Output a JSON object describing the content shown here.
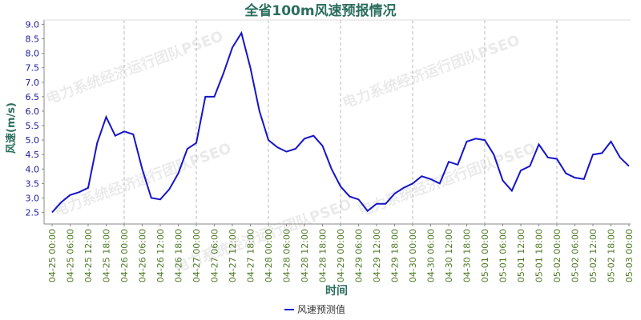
{
  "chart_data": {
    "type": "line",
    "title": "全省100m风速预报情况",
    "y_label": "风速(m/s)",
    "x_label": "时间",
    "watermark": "电力系统经济运行团队PSEO",
    "categories": [
      "04-25 00:00",
      null,
      "04-25 06:00",
      null,
      "04-25 12:00",
      null,
      "04-25 18:00",
      null,
      "04-26 00:00",
      null,
      "04-26 06:00",
      null,
      "04-26 12:00",
      null,
      "04-26 18:00",
      null,
      "04-27 00:00",
      null,
      "04-27 06:00",
      null,
      "04-27 12:00",
      null,
      "04-27 18:00",
      null,
      "04-28 00:00",
      null,
      "04-28 06:00",
      null,
      "04-28 12:00",
      null,
      "04-28 18:00",
      null,
      "04-29 00:00",
      null,
      "04-29 06:00",
      null,
      "04-29 12:00",
      null,
      "04-29 18:00",
      null,
      "04-30 00:00",
      null,
      "04-30 06:00",
      null,
      "04-30 12:00",
      null,
      "04-30 18:00",
      null,
      "05-01 00:00",
      null,
      "05-01 06:00",
      null,
      "05-01 12:00",
      null,
      "05-01 18:00",
      null,
      "05-02 00:00",
      null,
      "05-02 06:00",
      null,
      "05-02 12:00",
      null,
      "05-02 18:00",
      null,
      "05-03 00:00"
    ],
    "series": [
      {
        "name": "风速预测值",
        "color": "#1515c8",
        "values": [
          2.5,
          2.85,
          3.1,
          3.2,
          3.35,
          4.9,
          5.8,
          5.15,
          5.3,
          5.2,
          4.0,
          3.0,
          2.95,
          3.3,
          3.85,
          4.7,
          4.9,
          6.5,
          6.5,
          7.3,
          8.2,
          8.7,
          7.5,
          6.0,
          5.0,
          4.75,
          4.6,
          4.7,
          5.05,
          5.15,
          4.8,
          4.0,
          3.4,
          3.05,
          2.95,
          2.55,
          2.8,
          2.8,
          3.15,
          3.35,
          3.5,
          3.75,
          3.65,
          3.5,
          4.25,
          4.15,
          4.95,
          5.05,
          5.0,
          4.5,
          3.6,
          3.25,
          3.95,
          4.1,
          4.85,
          4.4,
          4.35,
          3.85,
          3.7,
          3.65,
          4.5,
          4.55,
          4.95,
          4.4,
          4.1
        ]
      }
    ],
    "ylim": [
      2.1,
      9.15
    ],
    "yticks": [
      2.5,
      {
        "value": 3,
        "label": "3.0"
      },
      3.5,
      {
        "value": 4,
        "label": "4.0"
      },
      4.5,
      {
        "value": 5,
        "label": "5.0"
      },
      5.5,
      {
        "value": 6,
        "label": "6.0"
      },
      6.5,
      {
        "value": 7,
        "label": "7.0"
      },
      7.5,
      {
        "value": 8,
        "label": "8.0"
      },
      8.5,
      {
        "value": 9,
        "label": "9.0"
      }
    ],
    "grid": true
  }
}
